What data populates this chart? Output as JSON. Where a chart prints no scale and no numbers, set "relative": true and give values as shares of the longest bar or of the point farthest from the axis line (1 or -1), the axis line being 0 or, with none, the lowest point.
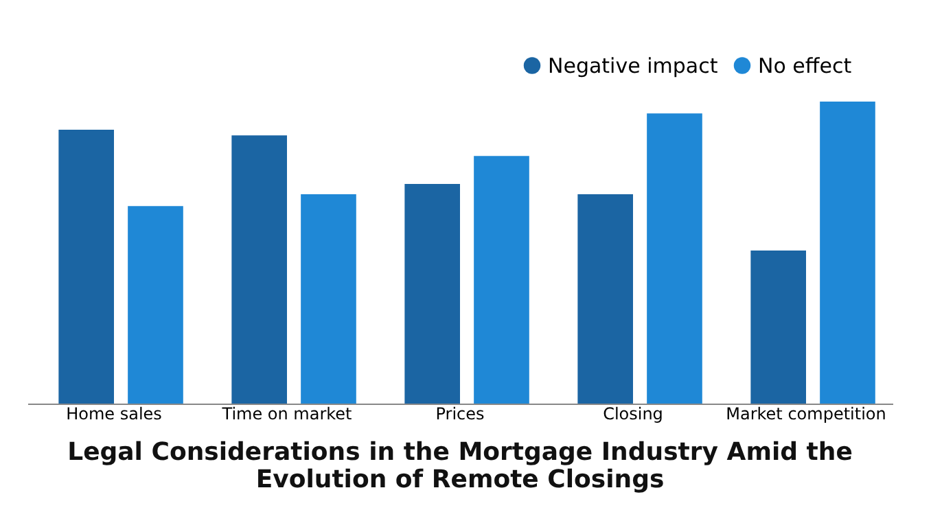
{
  "chart_data": {
    "type": "bar",
    "title": "Legal Considerations in the Mortgage Industry Amid the Evolution of Remote Closings",
    "categories": [
      "Home sales",
      "Time on market",
      "Prices",
      "Closing",
      "Market competition"
    ],
    "relative": true,
    "legend": "top right",
    "series": [
      {
        "name": "Negative impact",
        "color": "#1b65a3",
        "values": [
          0.907,
          0.888,
          0.727,
          0.693,
          0.507
        ]
      },
      {
        "name": "No effect",
        "color": "#1f88d6",
        "values": [
          0.654,
          0.693,
          0.82,
          0.961,
          1.0
        ]
      }
    ]
  }
}
